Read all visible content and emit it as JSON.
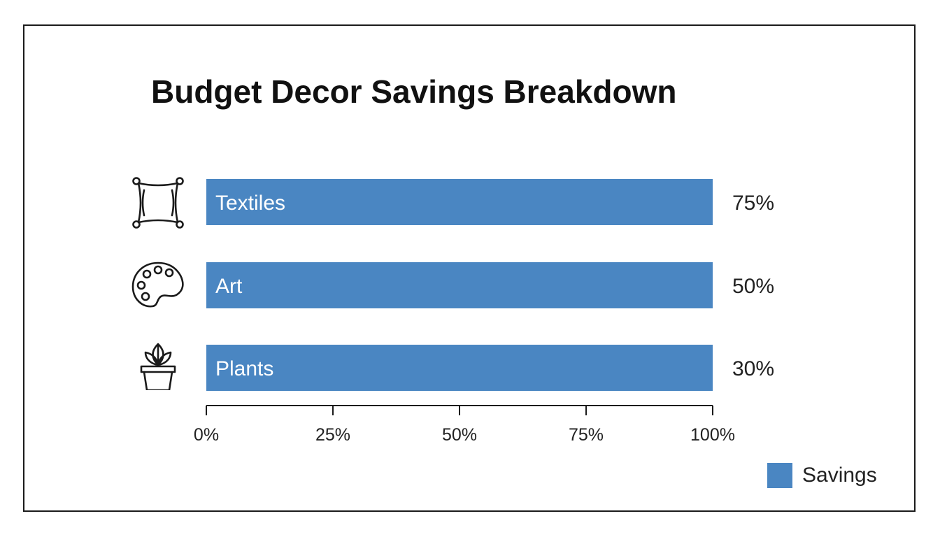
{
  "chart_data": {
    "type": "bar",
    "orientation": "horizontal",
    "title": "Budget Decor Savings Breakdown",
    "categories": [
      "Textiles",
      "Art",
      "Plants"
    ],
    "category_icons": [
      "pillow-icon",
      "palette-icon",
      "potted-plant-icon"
    ],
    "series": [
      {
        "name": "Savings",
        "values": [
          75,
          50,
          30
        ],
        "value_labels": [
          "75%",
          "50%",
          "30%"
        ]
      }
    ],
    "xlim": [
      0,
      100
    ],
    "x_ticks": [
      0,
      25,
      50,
      75,
      100
    ],
    "x_tick_labels": [
      "0%",
      "25%",
      "50%",
      "75%",
      "100%"
    ],
    "xlabel": "",
    "ylabel": "",
    "grid": false,
    "legend_position": "bottom-right",
    "bar_color": "#4a86c2"
  }
}
